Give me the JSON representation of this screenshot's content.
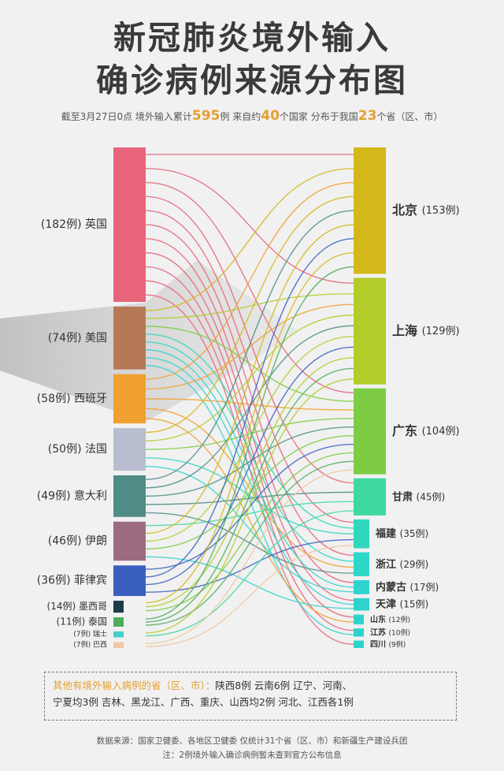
{
  "title": {
    "line1": "新冠肺炎境外输入",
    "line2": "确诊病例来源分布图"
  },
  "subtitle": {
    "p1": "截至3月27日0点  境外输入累计",
    "total": "595",
    "p2": "例  来自约",
    "countries": "40",
    "p3": "个国家  分布于我国",
    "provinces": "23",
    "p4": "个省（区、市）"
  },
  "chart_data": {
    "type": "sankey",
    "sources": [
      {
        "name": "英国",
        "label": "(182例) 英国",
        "value": 182,
        "color": "#e8647a"
      },
      {
        "name": "美国",
        "label": "(74例) 美国",
        "value": 74,
        "color": "#b57a55"
      },
      {
        "name": "西班牙",
        "label": "(58例) 西班牙",
        "value": 58,
        "color": "#f0a030"
      },
      {
        "name": "法国",
        "label": "(50例) 法国",
        "value": 50,
        "color": "#b8bdd0"
      },
      {
        "name": "意大利",
        "label": "(49例) 意大利",
        "value": 49,
        "color": "#4f8c86"
      },
      {
        "name": "伊朗",
        "label": "(46例) 伊朗",
        "value": 46,
        "color": "#9c6b82"
      },
      {
        "name": "菲律宾",
        "label": "(36例) 菲律宾",
        "value": 36,
        "color": "#3b5fc0"
      },
      {
        "name": "墨西哥",
        "label": "(14例) 墨西哥",
        "value": 14,
        "color": "#1d3a48"
      },
      {
        "name": "泰国",
        "label": "(11例) 泰国",
        "value": 11,
        "color": "#4cae5a"
      },
      {
        "name": "瑞士",
        "label": "(7例) 瑞士",
        "value": 7,
        "color": "#3fd0cf"
      },
      {
        "name": "巴西",
        "label": "(7例) 巴西",
        "value": 7,
        "color": "#f0c8a0"
      }
    ],
    "targets": [
      {
        "name": "北京",
        "count": "(153例)",
        "value": 153,
        "color": "#d4b81a"
      },
      {
        "name": "上海",
        "count": "(129例)",
        "value": 129,
        "color": "#b3cc2a"
      },
      {
        "name": "广东",
        "count": "(104例)",
        "value": 104,
        "color": "#7dcc44"
      },
      {
        "name": "甘肃",
        "count": "(45例)",
        "value": 45,
        "color": "#3fd9a0"
      },
      {
        "name": "福建",
        "count": "(35例)",
        "value": 35,
        "color": "#2fd8bc"
      },
      {
        "name": "浙江",
        "count": "(29例)",
        "value": 29,
        "color": "#2ed7c8"
      },
      {
        "name": "内蒙古",
        "count": "(17例)",
        "value": 17,
        "color": "#2fd3cc"
      },
      {
        "name": "天津",
        "count": "(15例)",
        "value": 15,
        "color": "#2fd3cc"
      },
      {
        "name": "山东",
        "count": "(12例)",
        "value": 12,
        "color": "#2fd3cc"
      },
      {
        "name": "江苏",
        "count": "(10例)",
        "value": 10,
        "color": "#2fd3cc"
      },
      {
        "name": "四川",
        "count": "(9例)",
        "value": 9,
        "color": "#2fd3cc"
      }
    ],
    "links": [
      [
        0,
        0
      ],
      [
        0,
        1
      ],
      [
        0,
        2
      ],
      [
        0,
        3
      ],
      [
        0,
        4
      ],
      [
        0,
        5
      ],
      [
        0,
        6
      ],
      [
        0,
        7
      ],
      [
        0,
        8
      ],
      [
        0,
        9
      ],
      [
        0,
        10
      ],
      [
        1,
        0
      ],
      [
        1,
        1
      ],
      [
        1,
        2
      ],
      [
        1,
        4
      ],
      [
        1,
        5
      ],
      [
        1,
        6
      ],
      [
        1,
        7
      ],
      [
        1,
        9
      ],
      [
        2,
        0
      ],
      [
        2,
        1
      ],
      [
        2,
        2
      ],
      [
        2,
        5
      ],
      [
        2,
        8
      ],
      [
        3,
        0
      ],
      [
        3,
        1
      ],
      [
        3,
        2
      ],
      [
        3,
        4
      ],
      [
        3,
        6
      ],
      [
        4,
        0
      ],
      [
        4,
        1
      ],
      [
        4,
        2
      ],
      [
        4,
        3
      ],
      [
        4,
        5
      ],
      [
        5,
        3
      ],
      [
        5,
        0
      ],
      [
        5,
        1
      ],
      [
        5,
        2
      ],
      [
        5,
        7
      ],
      [
        6,
        2
      ],
      [
        6,
        0
      ],
      [
        6,
        1
      ],
      [
        6,
        4
      ],
      [
        7,
        0
      ],
      [
        7,
        1
      ],
      [
        7,
        2
      ],
      [
        8,
        0
      ],
      [
        8,
        1
      ],
      [
        8,
        2
      ],
      [
        9,
        1
      ],
      [
        9,
        3
      ],
      [
        10,
        2
      ],
      [
        10,
        4
      ]
    ]
  },
  "note": {
    "head": "其他有境外输入病例的省（区、市）：",
    "line1": "陕西8例  云南6例  辽宁、河南、",
    "line2": "宁夏均3例  吉林、黑龙江、广西、重庆、山西均2例  河北、江西各1例"
  },
  "footer": {
    "line1": "数据来源：国家卫健委、各地区卫健委    仅统计31个省（区、市）和新疆生产建设兵团",
    "line2": "注：2例境外输入确诊病例暂未查到官方公布信息"
  }
}
